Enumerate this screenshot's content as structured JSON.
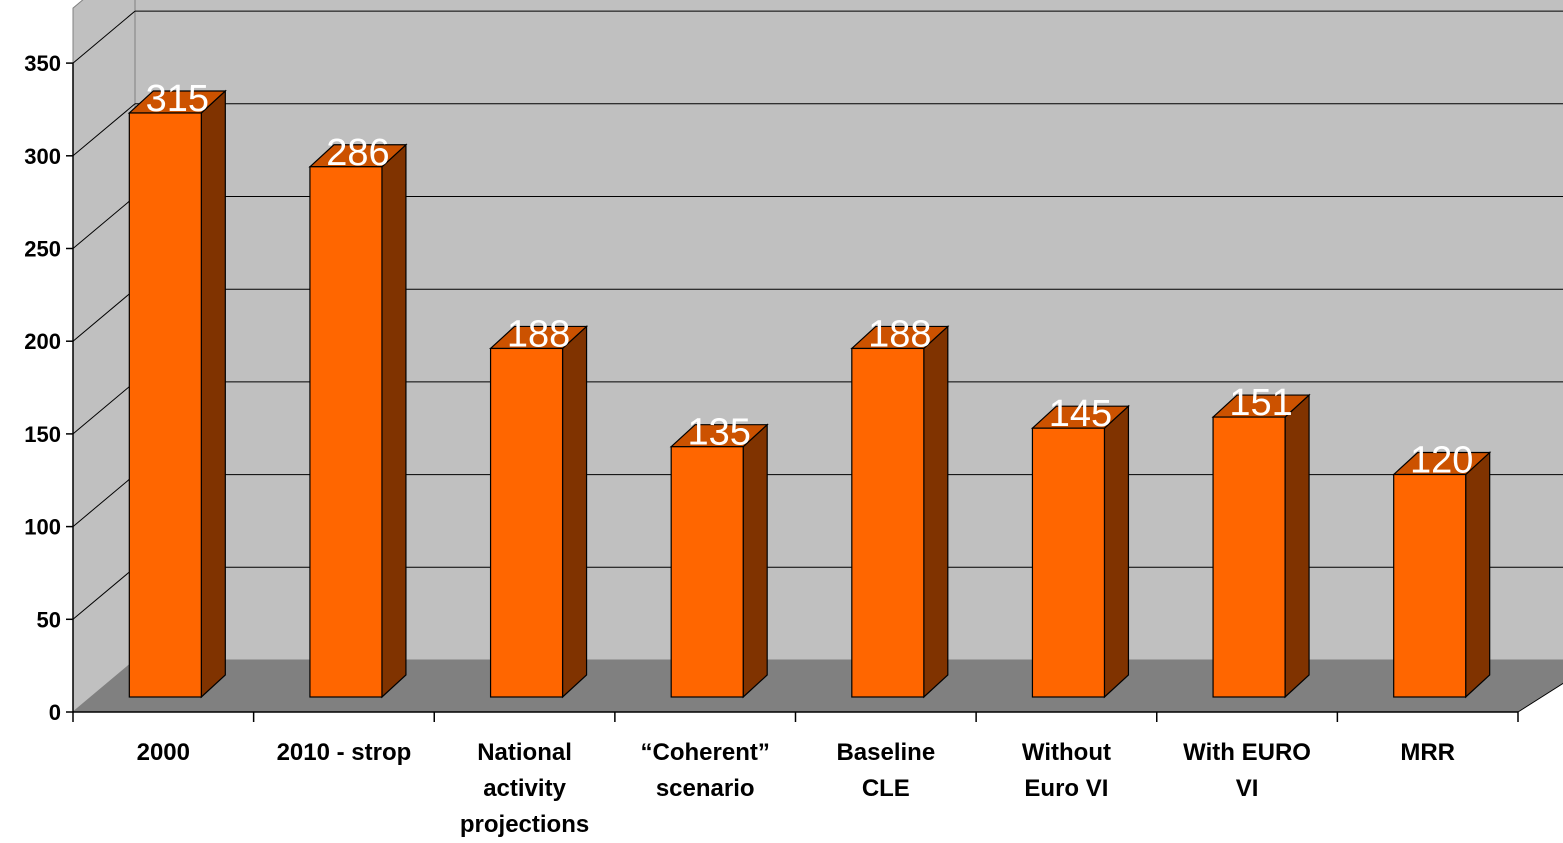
{
  "chart_data": {
    "type": "bar",
    "style": "3d-column",
    "categories": [
      [
        "2000"
      ],
      [
        "2010 - strop"
      ],
      [
        "National",
        "activity",
        "projections"
      ],
      [
        "“Coherent”",
        "scenario"
      ],
      [
        "Baseline",
        "CLE"
      ],
      [
        "Without",
        "Euro VI"
      ],
      [
        "With EURO",
        "VI"
      ],
      [
        "MRR"
      ]
    ],
    "values": [
      315,
      286,
      188,
      135,
      188,
      145,
      151,
      120
    ],
    "data_labels": [
      "315",
      "286",
      "188",
      "135",
      "188",
      "145",
      "151",
      "120"
    ],
    "y_ticks": [
      0,
      50,
      100,
      150,
      200,
      250,
      300,
      350
    ],
    "ylim": [
      0,
      350
    ],
    "grid": true,
    "legend": "none",
    "colors": {
      "bar_front": "#ff6600",
      "bar_top": "#cc5200",
      "bar_side": "#803300",
      "back_wall": "#c0c0c0",
      "side_wall": "#c0c0c0",
      "floor": "#808080",
      "gridline": "#000000",
      "data_label": "#ffffff"
    }
  }
}
